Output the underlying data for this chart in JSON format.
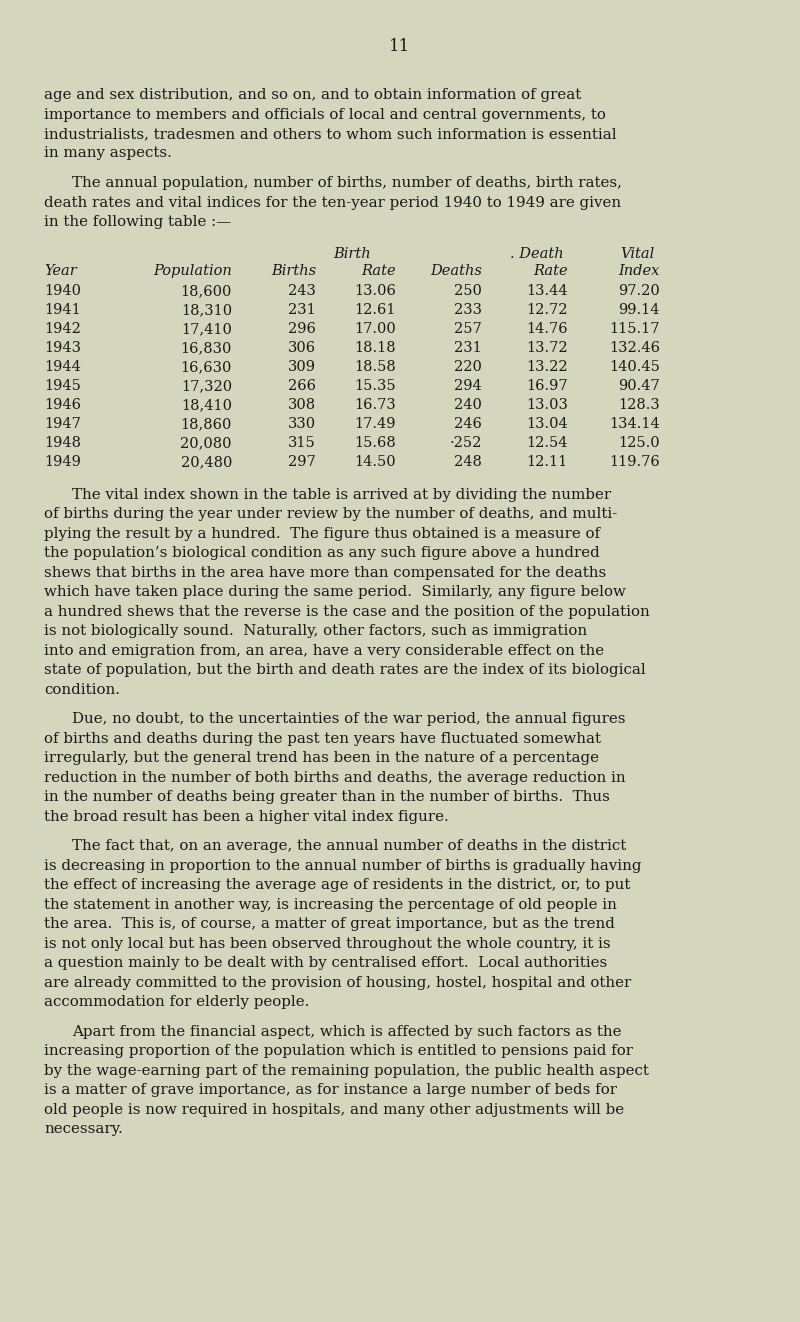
{
  "bg_color": "#d5d6be",
  "text_color": "#1a1a1a",
  "page_number": "11",
  "font_size_body": 10.8,
  "font_size_table": 10.5,
  "font_size_page_num": 12,
  "paragraph1": "age and sex distribution, and so on, and to obtain information of great importance to members and officials of local and central governments, to industrialists, tradesmen and others to whom such information is essential in many aspects.",
  "paragraph2": "The annual population, number of births, number of deaths, birth rates, death rates and vital indices for the ten-year period 1940 to 1949 are given in the following table :—",
  "table_data": [
    [
      "1940",
      "18,600",
      "243",
      "13.06",
      "250",
      "13.44",
      "97.20"
    ],
    [
      "1941",
      "18,310",
      "231",
      "12.61",
      "233",
      "12.72",
      "99.14"
    ],
    [
      "1942",
      "17,410",
      "296",
      "17.00",
      "257",
      "14.76",
      "115.17"
    ],
    [
      "1943",
      "16,830",
      "306",
      "18.18",
      "231",
      "13.72",
      "132.46"
    ],
    [
      "1944",
      "16,630",
      "309",
      "18.58",
      "220",
      "13.22",
      "140.45"
    ],
    [
      "1945",
      "17,320",
      "266",
      "15.35",
      "294",
      "16.97",
      "90.47"
    ],
    [
      "1946",
      "18,410",
      "308",
      "16.73",
      "240",
      "13.03",
      "128.3"
    ],
    [
      "1947",
      "18,860",
      "330",
      "17.49",
      "246",
      "13.04",
      "134.14"
    ],
    [
      "1948",
      "20,080",
      "315",
      "15.68",
      "·252",
      "12.54",
      "125.0"
    ],
    [
      "1949",
      "20,480",
      "297",
      "14.50",
      "248",
      "12.11",
      "119.76"
    ]
  ],
  "paragraph3": "The vital index shown in the table is arrived at by dividing the number of births during the year under review by the number of deaths, and multi- plying the result by a hundred.  The figure thus obtained is a measure of the population’s biological condition as any such figure above a hundred shews that births in the area have more than compensated for the deaths which have taken place during the same period.  Similarly, any figure below a hundred shews that the reverse is the case and the position of the population is not biologically sound.  Naturally, other factors, such as immigration into and emigration from, an area, have a very considerable effect on the state of population, but the birth and death rates are the index of its biological condition.",
  "paragraph4": "Due, no doubt, to the uncertainties of the war period, the annual figures of births and deaths during the past ten years have fluctuated somewhat irregularly, but the general trend has been in the nature of a percentage reduction in the number of both births and deaths, the average reduction in in the number of deaths being greater than in the number of births.  Thus the broad result has been a higher vital index figure.",
  "paragraph5": "The fact that, on an average, the annual number of deaths in the district is decreasing in proportion to the annual number of births is gradually having the effect of increasing the average age of residents in the district, or, to put the statement in another way, is increasing the percentage of old people in the area.  This is, of course, a matter of great importance, but as the trend is not only local but has been observed throughout the whole country, it is a question mainly to be dealt with by centralised effort.  Local authorities are already committed to the provision of housing, hostel, hospital and other accommodation for elderly people.",
  "paragraph6": "Apart from the financial aspect, which is affected by such factors as the increasing proportion of the population which is entitled to pensions paid for by the wage-earning part of the remaining population, the public health aspect is a matter of grave importance, as for instance a large number of beds for old people is now required in hospitals, and many other adjustments will be necessary."
}
